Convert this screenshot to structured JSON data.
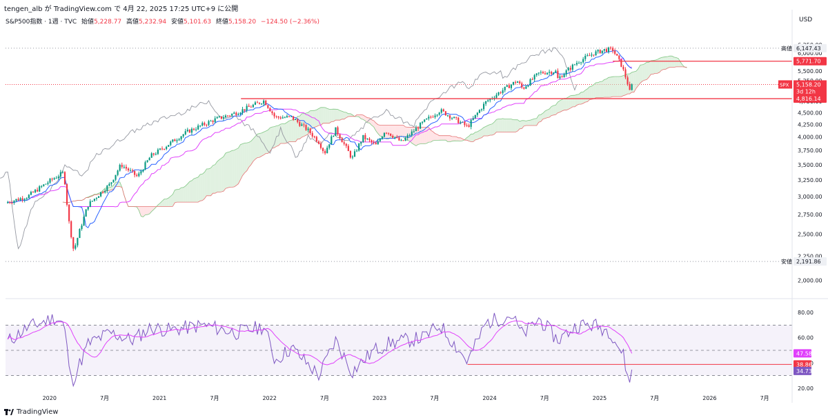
{
  "header": {
    "publish_line": "tengen_alb が TradingView.com で 4月 22, 2025 17:25 UTC+9 に公開"
  },
  "legend": {
    "symbol": "S&P500指数 · 1週 · TVC",
    "open_label": "始値",
    "open_value": "5,228.77",
    "high_label": "高値",
    "high_value": "5,232.94",
    "low_label": "安値",
    "low_value": "5,101.63",
    "close_label": "終値",
    "close_value": "5,158.20",
    "change_value": "−124.50 (−2.36%)"
  },
  "axis": {
    "currency": "USD"
  },
  "markers": {
    "high": {
      "label": "高値",
      "value": "6,147.43"
    },
    "low": {
      "label": "安値",
      "value": "2,191.86"
    },
    "resistance": {
      "value": "5,771.70"
    },
    "support": {
      "value": "4,816.14"
    },
    "last": {
      "symbol": "SPX",
      "value": "5,158.20",
      "countdown": "3d 12h"
    }
  },
  "rsi_markers": {
    "ma_value": "47.58",
    "line_value": "38.86",
    "rsi_value": "34.73"
  },
  "footer": {
    "brand": "TradingView"
  },
  "colors": {
    "up": "#089981",
    "down": "#f23645",
    "conversion": "#2962ff",
    "base": "#e040fb",
    "lagging": "#9598a1",
    "cloud_bull": "#c8e6c9",
    "cloud_bear": "#ffcdd2",
    "hline": "#f23645",
    "rsi": "#7e57c2",
    "rsi_ma": "#e040fb"
  },
  "chart_data": [
    {
      "type": "candlestick",
      "title": "S&P500指数 · 1週 · TVC",
      "ylabel": "USD",
      "y_scale": "log",
      "ylim": [
        1900,
        6700
      ],
      "y_ticks": [
        "6,250.00",
        "6,000.00",
        "5,750.00",
        "5,500.00",
        "5,250.00",
        "5,000.00",
        "4,750.00",
        "4,500.00",
        "4,250.00",
        "4,000.00",
        "3,750.00",
        "3,500.00",
        "3,250.00",
        "3,000.00",
        "2,750.00",
        "2,500.00",
        "2,250.00",
        "2,000.00"
      ],
      "x_ticks": [
        "2020",
        "7月",
        "2021",
        "7月",
        "2022",
        "7月",
        "2023",
        "7月",
        "2024",
        "7月",
        "2025",
        "7月",
        "2026",
        "7月"
      ],
      "xlim": [
        2019.6,
        2026.75
      ],
      "anchors": [
        [
          2019.62,
          2920
        ],
        [
          2019.8,
          3000
        ],
        [
          2020.05,
          3290
        ],
        [
          2020.13,
          3370
        ],
        [
          2020.17,
          2711
        ],
        [
          2020.22,
          2304
        ],
        [
          2020.35,
          2880
        ],
        [
          2020.55,
          3185
        ],
        [
          2020.65,
          3500
        ],
        [
          2020.8,
          3300
        ],
        [
          2020.92,
          3650
        ],
        [
          2021.0,
          3750
        ],
        [
          2021.25,
          4100
        ],
        [
          2021.5,
          4350
        ],
        [
          2021.7,
          4500
        ],
        [
          2021.95,
          4770
        ],
        [
          2022.05,
          4400
        ],
        [
          2022.2,
          4400
        ],
        [
          2022.35,
          4130
        ],
        [
          2022.45,
          3900
        ],
        [
          2022.5,
          3700
        ],
        [
          2022.6,
          4150
        ],
        [
          2022.75,
          3600
        ],
        [
          2022.85,
          4000
        ],
        [
          2022.97,
          3840
        ],
        [
          2023.05,
          4130
        ],
        [
          2023.2,
          3900
        ],
        [
          2023.4,
          4300
        ],
        [
          2023.55,
          4550
        ],
        [
          2023.8,
          4200
        ],
        [
          2023.97,
          4750
        ],
        [
          2024.25,
          5250
        ],
        [
          2024.3,
          5050
        ],
        [
          2024.45,
          5450
        ],
        [
          2024.6,
          5500
        ],
        [
          2024.62,
          5300
        ],
        [
          2024.8,
          5750
        ],
        [
          2024.95,
          6000
        ],
        [
          2025.05,
          6100
        ],
        [
          2025.12,
          6100
        ],
        [
          2025.2,
          5650
        ],
        [
          2025.26,
          5150
        ],
        [
          2025.27,
          4950
        ],
        [
          2025.3,
          5158
        ]
      ],
      "last_close": 5158.2,
      "horizontal_lines": [
        5771.7,
        4816.14
      ],
      "indicators": [
        "Ichimoku Cloud: conversion, base, lagging, cloud"
      ]
    },
    {
      "type": "line",
      "title": "RSI",
      "ylim": [
        15,
        85
      ],
      "y_ticks": [
        "80.00",
        "60.00",
        "40.00",
        "20.00"
      ],
      "bands": [
        70,
        50,
        30
      ],
      "series": [
        {
          "name": "RSI",
          "values": "weekly RSI, last 34.73"
        },
        {
          "name": "RSI MA",
          "values": "smoothed, last 47.58"
        }
      ],
      "anchors": [
        [
          2019.62,
          57
        ],
        [
          2019.8,
          68
        ],
        [
          2020.05,
          76
        ],
        [
          2020.13,
          71
        ],
        [
          2020.2,
          24
        ],
        [
          2020.35,
          55
        ],
        [
          2020.55,
          64
        ],
        [
          2020.75,
          58
        ],
        [
          2020.92,
          68
        ],
        [
          2021.1,
          66
        ],
        [
          2021.4,
          70
        ],
        [
          2021.7,
          64
        ],
        [
          2021.95,
          69
        ],
        [
          2022.05,
          42
        ],
        [
          2022.2,
          52
        ],
        [
          2022.45,
          30
        ],
        [
          2022.6,
          58
        ],
        [
          2022.75,
          33
        ],
        [
          2022.95,
          50
        ],
        [
          2023.1,
          56
        ],
        [
          2023.4,
          60
        ],
        [
          2023.55,
          70
        ],
        [
          2023.8,
          41
        ],
        [
          2023.97,
          72
        ],
        [
          2024.2,
          78
        ],
        [
          2024.3,
          62
        ],
        [
          2024.45,
          75
        ],
        [
          2024.62,
          58
        ],
        [
          2024.8,
          70
        ],
        [
          2024.95,
          70
        ],
        [
          2025.1,
          65
        ],
        [
          2025.22,
          45
        ],
        [
          2025.26,
          26
        ],
        [
          2025.3,
          34.73
        ]
      ],
      "horizontal_lines": [
        38.86
      ]
    }
  ]
}
